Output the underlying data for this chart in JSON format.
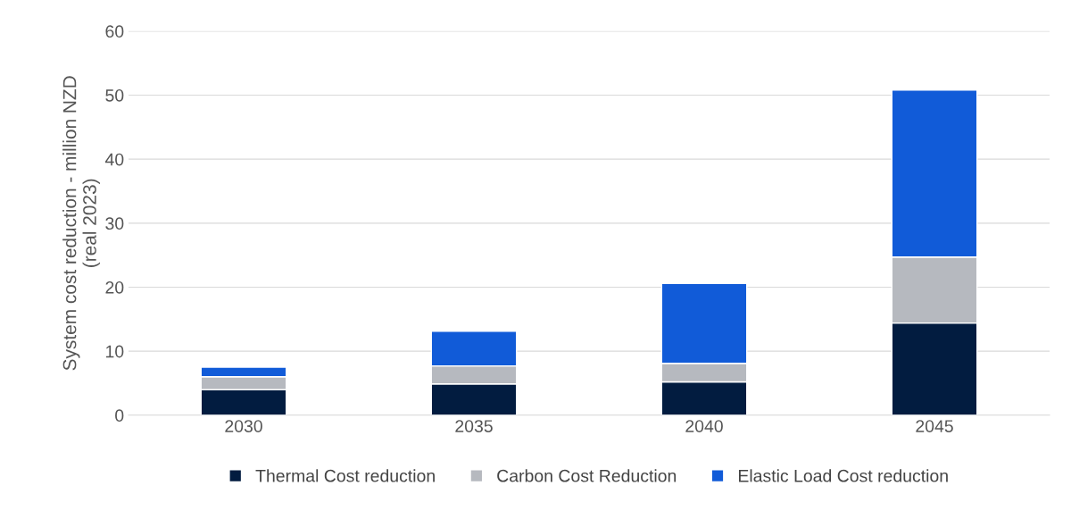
{
  "chart_data": {
    "type": "bar",
    "stacked": true,
    "ylabel": "System cost reduction - million NZD\n(real 2023)",
    "categories": [
      "2030",
      "2035",
      "2040",
      "2045"
    ],
    "series": [
      {
        "name": "Thermal Cost reduction",
        "color": "#021c40",
        "values": [
          4.0,
          4.9,
          5.2,
          14.4
        ]
      },
      {
        "name": "Carbon Cost Reduction",
        "color": "#b6b9bf",
        "values": [
          2.0,
          2.8,
          2.9,
          10.3
        ]
      },
      {
        "name": "Elastic Load Cost reduction",
        "color": "#115bd8",
        "values": [
          1.5,
          5.4,
          12.5,
          26.1
        ]
      }
    ],
    "ylim": [
      0,
      60
    ],
    "yticks": [
      0,
      10,
      20,
      30,
      40,
      50,
      60
    ],
    "grid": "y",
    "legend": "bottom"
  }
}
